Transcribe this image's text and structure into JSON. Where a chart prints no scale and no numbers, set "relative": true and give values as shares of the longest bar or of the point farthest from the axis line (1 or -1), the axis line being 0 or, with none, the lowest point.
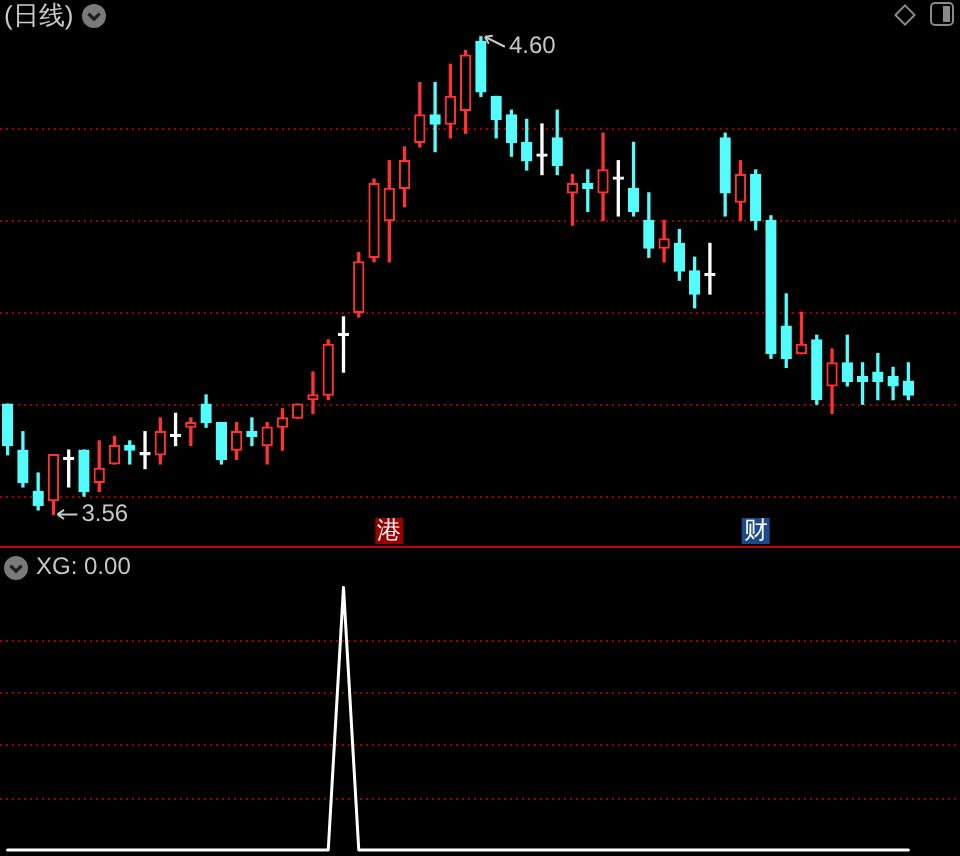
{
  "chart_data": [
    {
      "type": "candlestick",
      "title": "(日线)",
      "categories": [
        null,
        null,
        null,
        null,
        null,
        null,
        null,
        null,
        null,
        null,
        null,
        null,
        null,
        null,
        null,
        null,
        null,
        null,
        null,
        null,
        null,
        null,
        null,
        null,
        null,
        null,
        null,
        null,
        null,
        null,
        null,
        null,
        null,
        null,
        null,
        null,
        null,
        null,
        null,
        null,
        null,
        null,
        null,
        null,
        null,
        null,
        null,
        null,
        null,
        null,
        null,
        null,
        null,
        null,
        null,
        null,
        null,
        null,
        null,
        null
      ],
      "ohlc": [
        [
          3.8,
          3.8,
          3.69,
          3.71
        ],
        [
          3.7,
          3.74,
          3.62,
          3.63
        ],
        [
          3.61,
          3.65,
          3.57,
          3.58
        ],
        [
          3.59,
          3.69,
          3.56,
          3.69
        ],
        [
          3.68,
          3.7,
          3.62,
          3.68
        ],
        [
          3.7,
          3.7,
          3.6,
          3.61
        ],
        [
          3.63,
          3.72,
          3.61,
          3.66
        ],
        [
          3.67,
          3.73,
          3.67,
          3.71
        ],
        [
          3.71,
          3.72,
          3.67,
          3.7
        ],
        [
          3.69,
          3.74,
          3.66,
          3.69
        ],
        [
          3.69,
          3.77,
          3.67,
          3.74
        ],
        [
          3.73,
          3.78,
          3.71,
          3.73
        ],
        [
          3.75,
          3.77,
          3.71,
          3.76
        ],
        [
          3.8,
          3.82,
          3.75,
          3.76
        ],
        [
          3.76,
          3.76,
          3.67,
          3.68
        ],
        [
          3.7,
          3.76,
          3.68,
          3.74
        ],
        [
          3.74,
          3.77,
          3.71,
          3.73
        ],
        [
          3.71,
          3.76,
          3.67,
          3.75
        ],
        [
          3.75,
          3.79,
          3.7,
          3.77
        ],
        [
          3.77,
          3.8,
          3.77,
          3.8
        ],
        [
          3.81,
          3.87,
          3.78,
          3.82
        ],
        [
          3.82,
          3.94,
          3.81,
          3.93
        ],
        [
          3.95,
          3.99,
          3.87,
          3.95
        ],
        [
          4.0,
          4.13,
          3.99,
          4.11
        ],
        [
          4.12,
          4.29,
          4.11,
          4.28
        ],
        [
          4.2,
          4.33,
          4.11,
          4.27
        ],
        [
          4.27,
          4.36,
          4.23,
          4.33
        ],
        [
          4.37,
          4.5,
          4.36,
          4.43
        ],
        [
          4.43,
          4.5,
          4.35,
          4.41
        ],
        [
          4.41,
          4.54,
          4.38,
          4.47
        ],
        [
          4.44,
          4.57,
          4.39,
          4.56
        ],
        [
          4.59,
          4.6,
          4.47,
          4.48
        ],
        [
          4.47,
          4.47,
          4.38,
          4.42
        ],
        [
          4.43,
          4.44,
          4.34,
          4.37
        ],
        [
          4.37,
          4.42,
          4.31,
          4.33
        ],
        [
          4.34,
          4.41,
          4.3,
          4.34
        ],
        [
          4.38,
          4.44,
          4.3,
          4.32
        ],
        [
          4.26,
          4.3,
          4.19,
          4.28
        ],
        [
          4.28,
          4.31,
          4.22,
          4.27
        ],
        [
          4.26,
          4.39,
          4.2,
          4.31
        ],
        [
          4.29,
          4.33,
          4.21,
          4.29
        ],
        [
          4.27,
          4.37,
          4.21,
          4.22
        ],
        [
          4.2,
          4.26,
          4.12,
          4.14
        ],
        [
          4.14,
          4.2,
          4.11,
          4.16
        ],
        [
          4.15,
          4.18,
          4.07,
          4.09
        ],
        [
          4.09,
          4.12,
          4.01,
          4.04
        ],
        [
          4.08,
          4.15,
          4.04,
          4.08
        ],
        [
          4.38,
          4.39,
          4.21,
          4.26
        ],
        [
          4.24,
          4.33,
          4.2,
          4.3
        ],
        [
          4.3,
          4.31,
          4.18,
          4.2
        ],
        [
          4.2,
          4.21,
          3.9,
          3.91
        ],
        [
          3.97,
          4.04,
          3.88,
          3.9
        ],
        [
          3.91,
          4.0,
          3.91,
          3.93
        ],
        [
          3.94,
          3.95,
          3.8,
          3.81
        ],
        [
          3.84,
          3.92,
          3.78,
          3.89
        ],
        [
          3.89,
          3.95,
          3.84,
          3.85
        ],
        [
          3.86,
          3.89,
          3.8,
          3.85
        ],
        [
          3.87,
          3.91,
          3.81,
          3.85
        ],
        [
          3.86,
          3.88,
          3.81,
          3.84
        ],
        [
          3.85,
          3.89,
          3.81,
          3.82
        ]
      ],
      "colors": [
        "#54fcfc",
        "#54fcfc",
        "#54fcfc",
        "#ff3232",
        "#ffffff",
        "#54fcfc",
        "#ff3232",
        "#ff3232",
        "#54fcfc",
        "#ffffff",
        "#ff3232",
        "#ffffff",
        "#ff3232",
        "#54fcfc",
        "#54fcfc",
        "#ff3232",
        "#54fcfc",
        "#ff3232",
        "#ff3232",
        "#ff3232",
        "#ff3232",
        "#ff3232",
        "#ffffff",
        "#ff3232",
        "#ff3232",
        "#ff3232",
        "#ff3232",
        "#ff3232",
        "#54fcfc",
        "#ff3232",
        "#ff3232",
        "#54fcfc",
        "#54fcfc",
        "#54fcfc",
        "#54fcfc",
        "#ffffff",
        "#54fcfc",
        "#ff3232",
        "#54fcfc",
        "#ff3232",
        "#ffffff",
        "#54fcfc",
        "#54fcfc",
        "#ff3232",
        "#54fcfc",
        "#54fcfc",
        "#ffffff",
        "#54fcfc",
        "#ff3232",
        "#54fcfc",
        "#54fcfc",
        "#54fcfc",
        "#ff3232",
        "#54fcfc",
        "#ff3232",
        "#54fcfc",
        "#54fcfc",
        "#54fcfc",
        "#54fcfc",
        "#54fcfc"
      ],
      "ylim": [
        3.5,
        4.68
      ],
      "yticks": [
        {
          "value": 3.6,
          "label": null
        },
        {
          "value": 3.8,
          "label": null
        },
        {
          "value": 4.0,
          "label": null
        },
        {
          "value": 4.2,
          "label": null
        },
        {
          "value": 4.4,
          "label": null
        }
      ],
      "grid": "y",
      "annotations": [
        "4.60",
        "3.56",
        "港",
        "财"
      ]
    },
    {
      "type": "line",
      "title": "XG: 0.00",
      "categories": [
        null,
        null,
        null,
        null,
        null,
        null,
        null,
        null,
        null,
        null,
        null,
        null,
        null,
        null,
        null,
        null,
        null,
        null,
        null,
        null,
        null,
        null,
        null,
        null,
        null,
        null,
        null,
        null,
        null,
        null,
        null,
        null,
        null,
        null,
        null,
        null,
        null,
        null,
        null,
        null,
        null,
        null,
        null,
        null,
        null,
        null,
        null,
        null,
        null,
        null,
        null,
        null,
        null,
        null,
        null,
        null,
        null,
        null,
        null,
        null
      ],
      "series": [
        {
          "color": "#ffffff",
          "values": [
            0,
            0,
            0,
            0,
            0,
            0,
            0,
            0,
            0,
            0,
            0,
            0,
            0,
            0,
            0,
            0,
            0,
            0,
            0,
            0,
            0,
            0,
            1,
            0,
            0,
            0,
            0,
            0,
            0,
            0,
            0,
            0,
            0,
            0,
            0,
            0,
            0,
            0,
            0,
            0,
            0,
            0,
            0,
            0,
            0,
            0,
            0,
            0,
            0,
            0,
            0,
            0,
            0,
            0,
            0,
            0,
            0,
            0,
            0,
            0
          ]
        }
      ],
      "relative": true,
      "ref_lines": [
        {
          "axis": "y",
          "value": 0.2,
          "color": "#9a0000",
          "line_style": "dotted"
        },
        {
          "axis": "y",
          "value": 0.4,
          "color": "#9a0000",
          "line_style": "dotted"
        },
        {
          "axis": "y",
          "value": 0.6,
          "color": "#9a0000",
          "line_style": "dotted"
        },
        {
          "axis": "y",
          "value": 0.8,
          "color": "#9a0000",
          "line_style": "dotted"
        }
      ]
    }
  ]
}
